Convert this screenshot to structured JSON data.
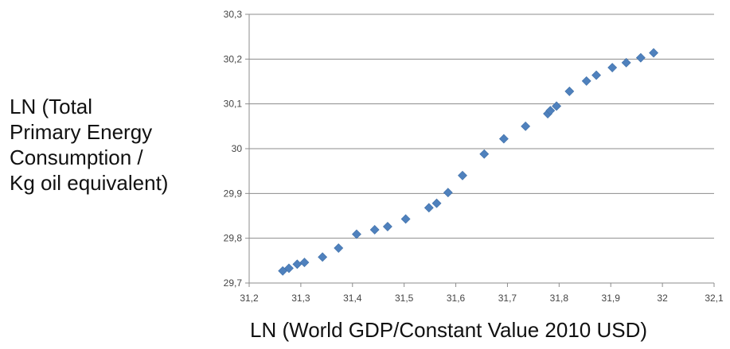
{
  "chart_data": {
    "type": "scatter",
    "ylabel_lines": [
      "LN (Total",
      "Primary Energy",
      "Consumption /",
      "Kg oil equivalent)"
    ],
    "xlabel": "LN (World GDP/Constant Value 2010 USD)",
    "xlim": [
      31.2,
      32.1
    ],
    "ylim": [
      29.7,
      30.3
    ],
    "x_ticks": [
      "31,2",
      "31,3",
      "31,4",
      "31,5",
      "31,6",
      "31,7",
      "31,8",
      "31,9",
      "32",
      "32,1"
    ],
    "y_ticks": [
      "30,3",
      "30,2",
      "30,1",
      "30",
      "29,9",
      "29,8",
      "29,7"
    ],
    "x_tick_values": [
      31.2,
      31.3,
      31.4,
      31.5,
      31.6,
      31.7,
      31.8,
      31.9,
      32.0,
      32.1
    ],
    "y_tick_values": [
      30.3,
      30.2,
      30.1,
      30.0,
      29.9,
      29.8,
      29.7
    ],
    "grid": "horizontal",
    "marker": "diamond",
    "color": "#4f81bd",
    "points": [
      [
        31.265,
        29.727
      ],
      [
        31.277,
        29.733
      ],
      [
        31.293,
        29.742
      ],
      [
        31.307,
        29.746
      ],
      [
        31.342,
        29.758
      ],
      [
        31.373,
        29.778
      ],
      [
        31.408,
        29.809
      ],
      [
        31.443,
        29.819
      ],
      [
        31.468,
        29.826
      ],
      [
        31.503,
        29.843
      ],
      [
        31.548,
        29.868
      ],
      [
        31.563,
        29.878
      ],
      [
        31.585,
        29.902
      ],
      [
        31.613,
        29.94
      ],
      [
        31.655,
        29.988
      ],
      [
        31.693,
        30.022
      ],
      [
        31.735,
        30.05
      ],
      [
        31.778,
        30.078
      ],
      [
        31.783,
        30.085
      ],
      [
        31.795,
        30.095
      ],
      [
        31.82,
        30.128
      ],
      [
        31.853,
        30.151
      ],
      [
        31.872,
        30.164
      ],
      [
        31.903,
        30.181
      ],
      [
        31.93,
        30.192
      ],
      [
        31.958,
        30.203
      ],
      [
        31.983,
        30.214
      ]
    ]
  }
}
